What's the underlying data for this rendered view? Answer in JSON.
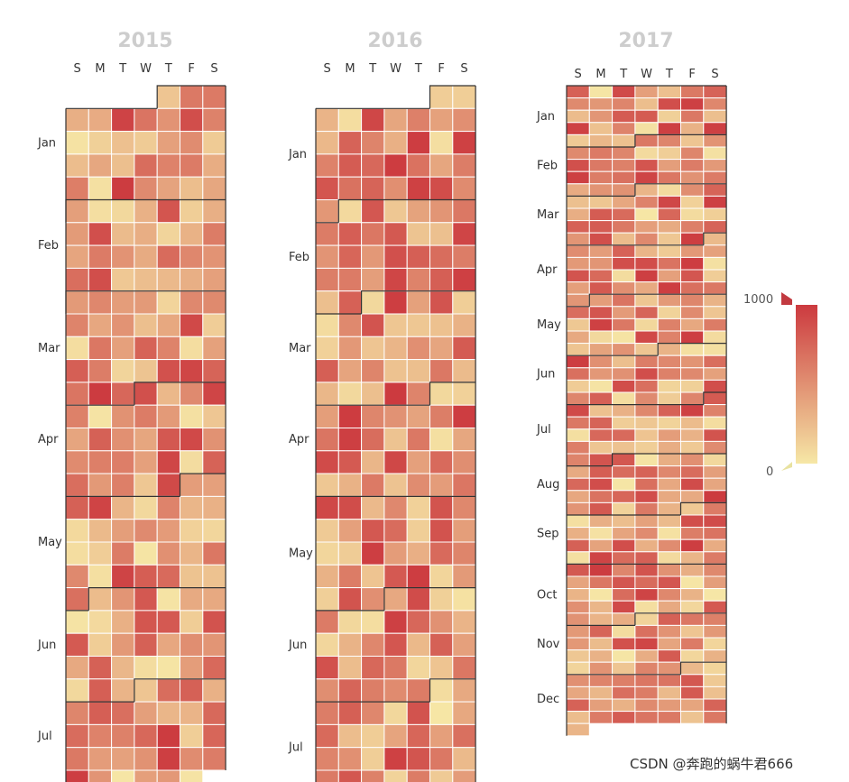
{
  "chart_data": {
    "type": "heatmap",
    "subtype": "calendar",
    "weekdays": [
      "S",
      "M",
      "T",
      "W",
      "T",
      "F",
      "S"
    ],
    "colors": {
      "low": "#f6e7a6",
      "high": "#cc3a3f",
      "grid": "#ffffff",
      "month_border": "#333333"
    },
    "visual_map": {
      "min": 0,
      "max": 1000,
      "min_label": "0",
      "max_label": "1000"
    },
    "panels": [
      {
        "year": "2015",
        "range": [
          "2015-01-01",
          "2015-07-31"
        ],
        "months": [
          "Jan",
          "Feb",
          "Mar",
          "Apr",
          "May",
          "Jun",
          "Jul"
        ],
        "seed": 2015
      },
      {
        "year": "2016",
        "range": [
          "2016-01-01",
          "2016-07-31"
        ],
        "months": [
          "Jan",
          "Feb",
          "Mar",
          "Apr",
          "May",
          "Jun",
          "Jul"
        ],
        "seed": 2016
      },
      {
        "year": "2017",
        "range": [
          "2017-01-01",
          "2017-12-31"
        ],
        "months": [
          "Jan",
          "Feb",
          "Mar",
          "Apr",
          "May",
          "Jun",
          "Jul",
          "Aug",
          "Sep",
          "Oct",
          "Nov",
          "Dec"
        ],
        "seed": 2017
      }
    ]
  },
  "watermark": "CSDN @奔跑的蜗牛君666"
}
